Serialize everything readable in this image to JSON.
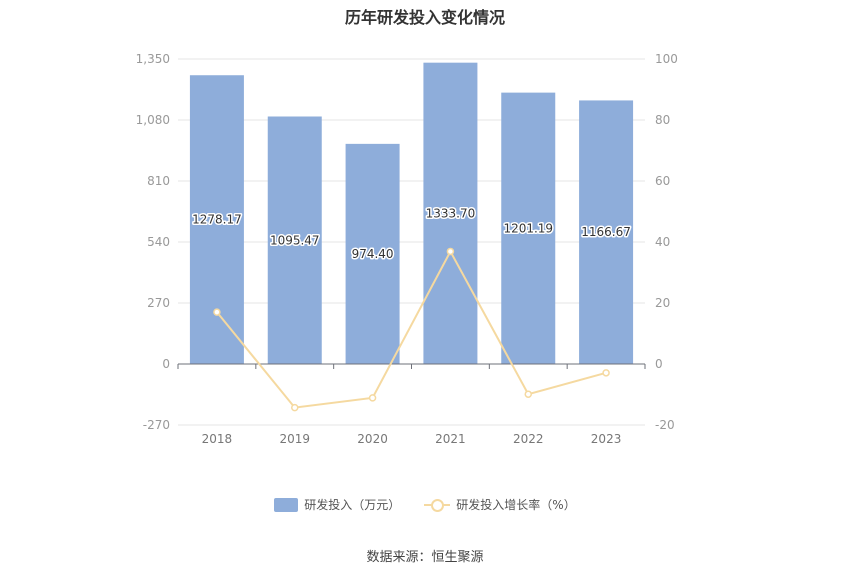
{
  "chart_data": {
    "type": "bar",
    "title": "历年研发投入变化情况",
    "categories": [
      "2018",
      "2019",
      "2020",
      "2021",
      "2022",
      "2023"
    ],
    "series": [
      {
        "name": "研发投入（万元）",
        "type": "bar",
        "axis": "left",
        "color": "#8eadda",
        "values": [
          1278.17,
          1095.47,
          974.4,
          1333.7,
          1201.19,
          1166.67
        ],
        "labels": [
          "1278.17",
          "1095.47",
          "974.40",
          "1333.70",
          "1201.19",
          "1166.67"
        ]
      },
      {
        "name": "研发投入增长率（%）",
        "type": "line",
        "axis": "right",
        "color": "#f5d9a0",
        "values": [
          17.0,
          -14.3,
          -11.1,
          36.9,
          -9.9,
          -2.9
        ]
      }
    ],
    "y_left": {
      "min": -270,
      "max": 1350,
      "ticks": [
        -270,
        0,
        270,
        540,
        810,
        1080,
        1350
      ],
      "tick_labels": [
        "-270",
        "0",
        "270",
        "540",
        "810",
        "1,080",
        "1,350"
      ]
    },
    "y_right": {
      "min": -20,
      "max": 100,
      "ticks": [
        -20,
        0,
        20,
        40,
        60,
        80,
        100
      ],
      "tick_labels": [
        "-20",
        "0",
        "20",
        "40",
        "60",
        "80",
        "100"
      ]
    },
    "grid": true,
    "legend_position": "bottom"
  },
  "source": "数据来源：恒生聚源"
}
